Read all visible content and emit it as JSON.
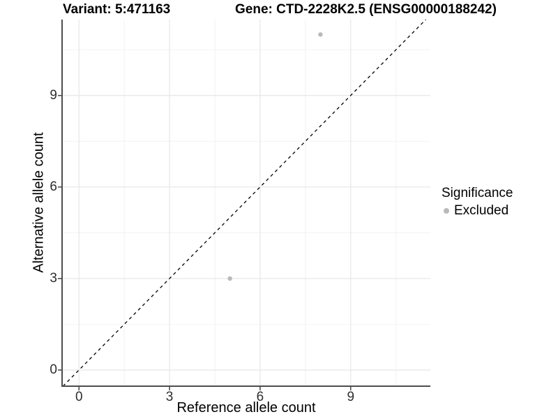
{
  "chart_data": {
    "type": "scatter",
    "title_left": "Variant: 5:471163",
    "title_right": "Gene: CTD-2228K2.5 (ENSG00000188242)",
    "xlabel": "Reference allele count",
    "ylabel": "Alternative allele count",
    "xlim": [
      -0.56,
      11.64
    ],
    "ylim": [
      -0.53,
      11.49
    ],
    "xticks": [
      0,
      3,
      6,
      9
    ],
    "yticks": [
      0,
      3,
      6,
      9
    ],
    "xminor": [
      1.5,
      4.5,
      7.5,
      10.5
    ],
    "yminor": [
      1.5,
      4.5,
      7.5,
      10.5
    ],
    "grid": "major+minor",
    "identity_line": {
      "equation": "y = x",
      "style": "dashed",
      "color": "#000000"
    },
    "series": [
      {
        "name": "Excluded",
        "color": "#b9b9b9",
        "points": [
          {
            "x": 5,
            "y": 3
          },
          {
            "x": 8,
            "y": 11
          }
        ]
      }
    ],
    "legend": {
      "title": "Significance",
      "position": "right",
      "items": [
        {
          "label": "Excluded",
          "color": "#b9b9b9"
        }
      ]
    },
    "colors": {
      "grid_major": "#e6e6e6",
      "grid_minor": "#f2f2f2",
      "axis": "#4d4d4d",
      "background": "#ffffff"
    }
  }
}
